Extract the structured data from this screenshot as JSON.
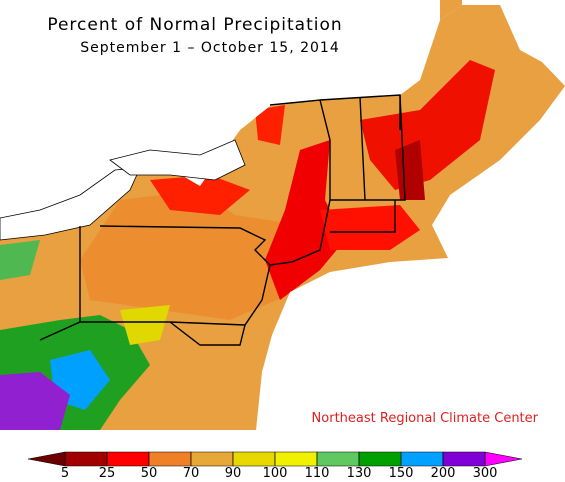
{
  "header": {
    "title": "Percent of Normal Precipitation",
    "subtitle": "September 1 – October 15, 2014"
  },
  "credit": "Northeast Regional Climate Center",
  "legend": {
    "ticks": [
      5,
      25,
      50,
      70,
      90,
      100,
      110,
      130,
      150,
      200,
      300
    ],
    "colors": [
      "#a00000",
      "#ff0000",
      "#f08028",
      "#e8a838",
      "#e8d800",
      "#f0f000",
      "#60c860",
      "#00a000",
      "#00a0ff",
      "#8000d8"
    ],
    "low_color": "#6a0000",
    "high_color": "#ff00ff"
  }
}
